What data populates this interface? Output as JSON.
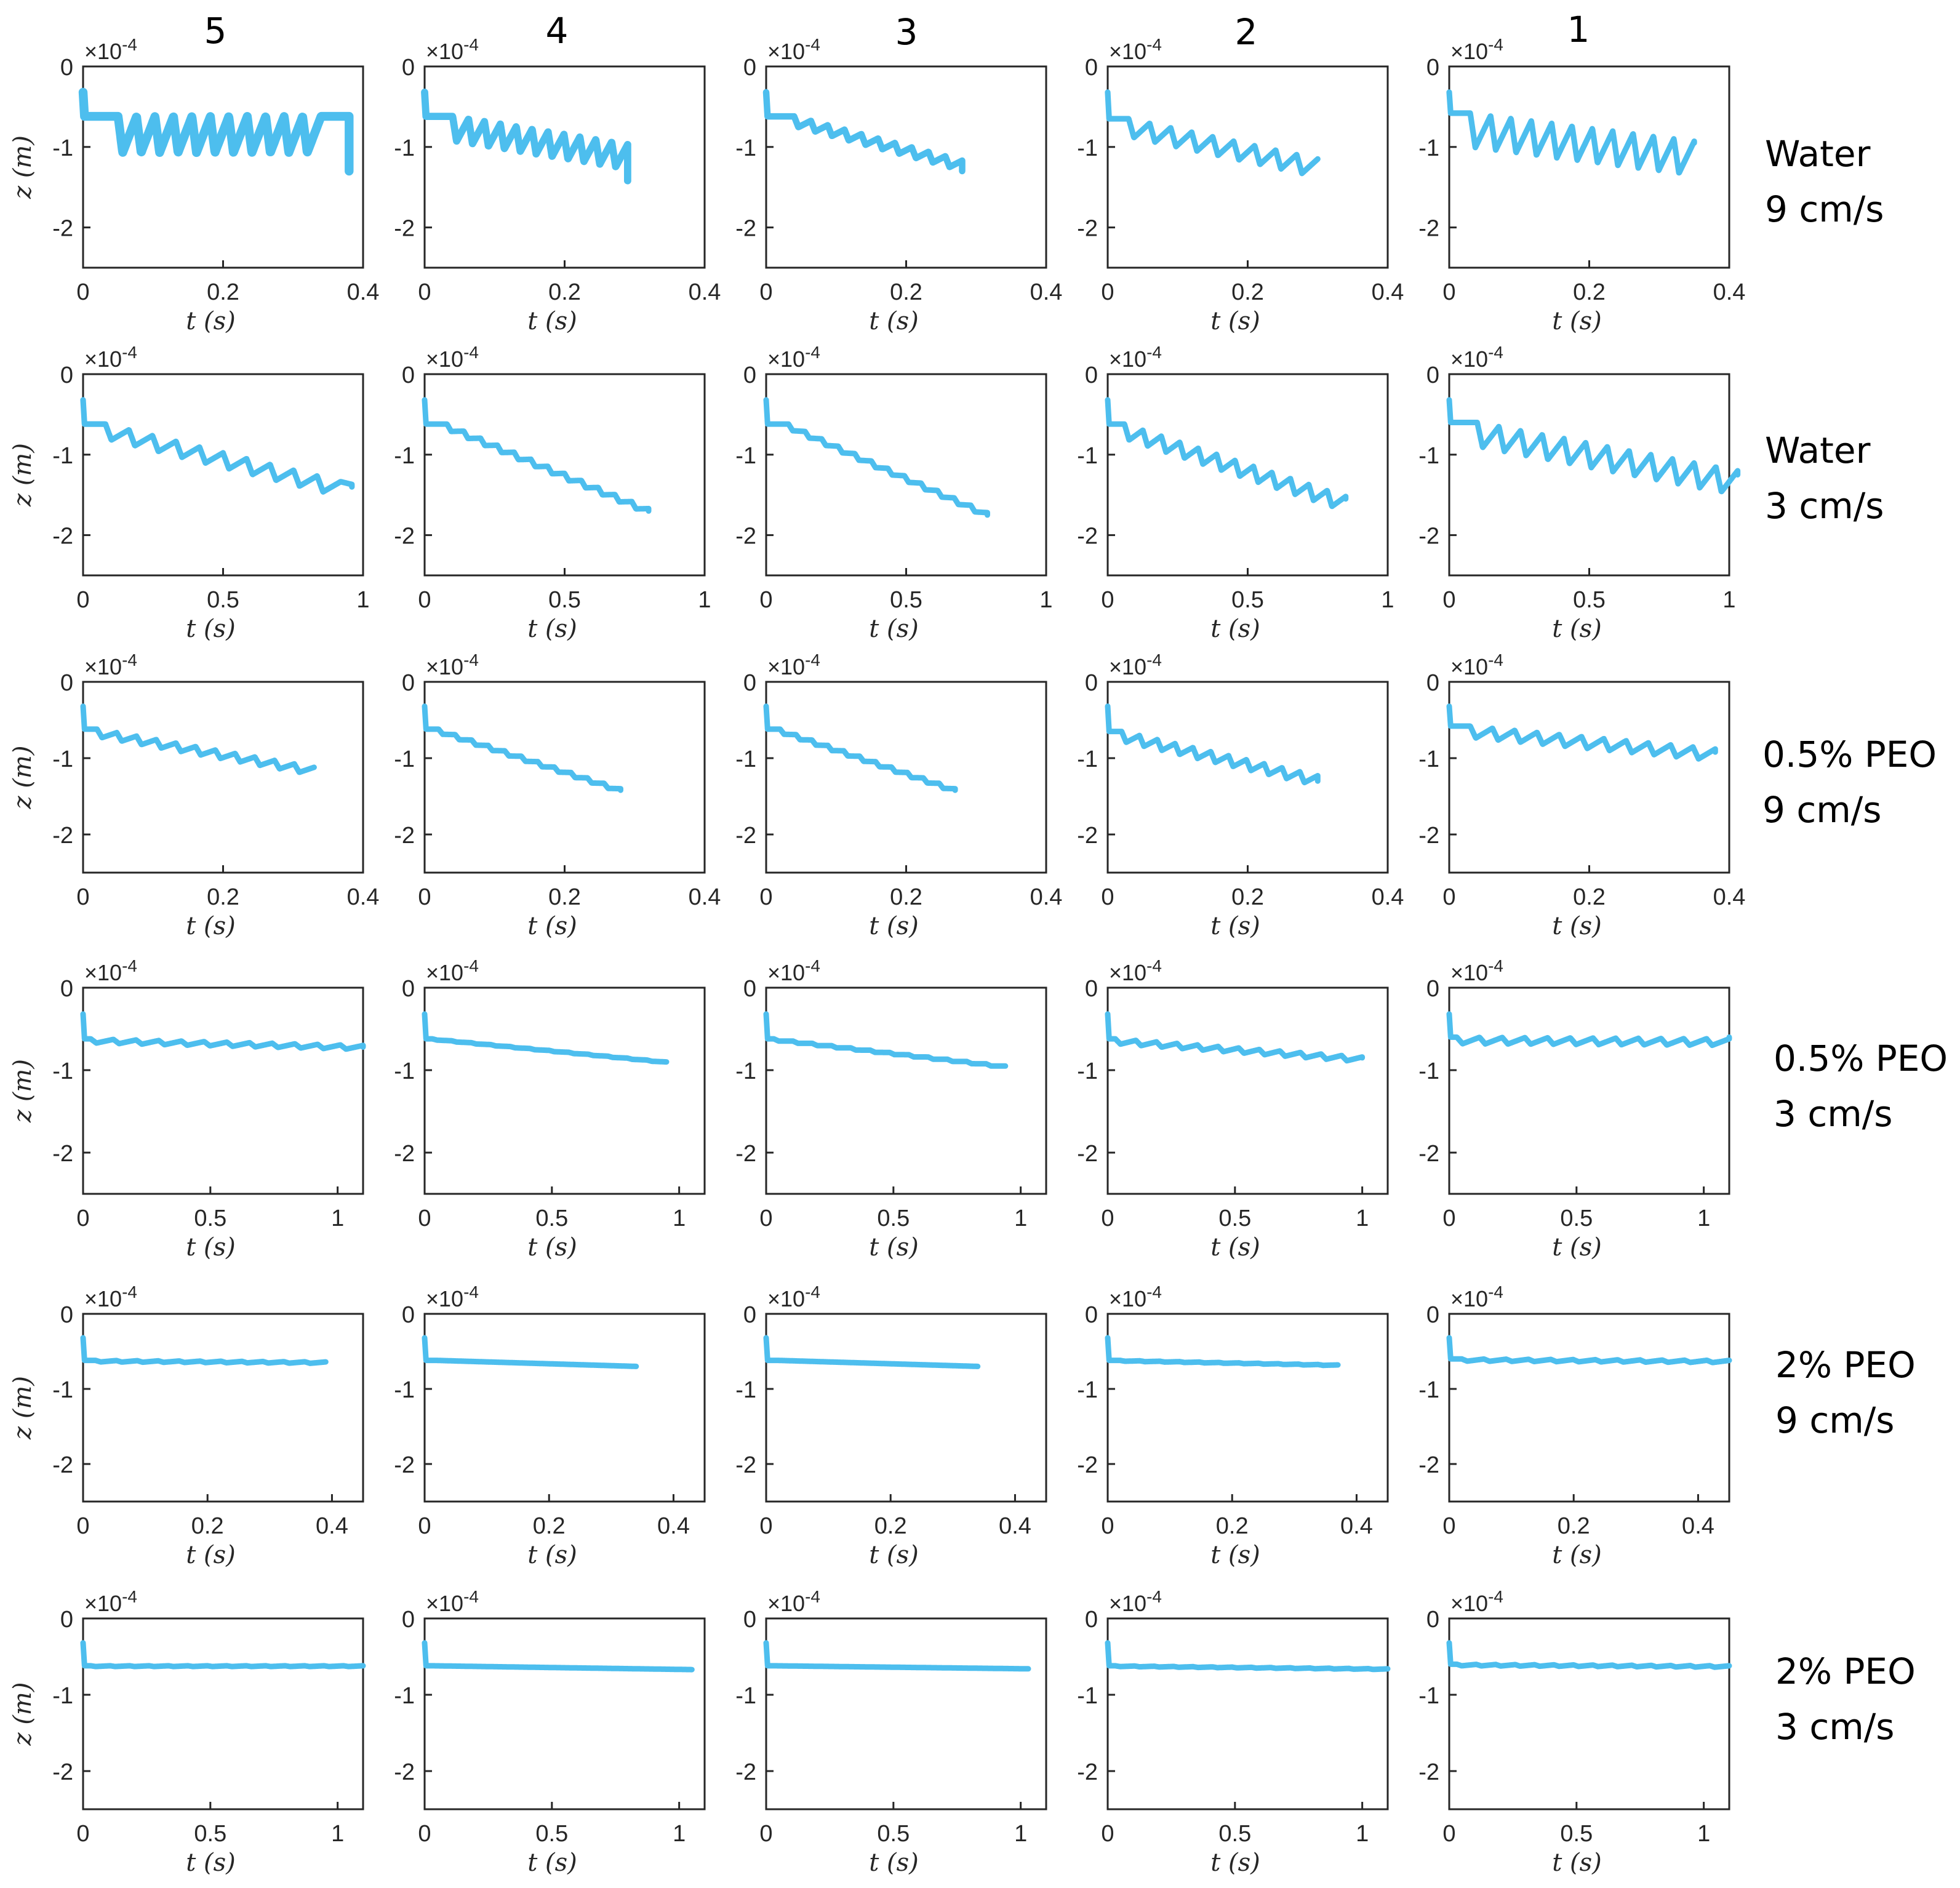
{
  "figure": {
    "column_headers": [
      "5",
      "4",
      "3",
      "2",
      "1"
    ],
    "row_labels": [
      {
        "line1": "Water",
        "line2": "9 cm/s"
      },
      {
        "line1": "Water",
        "line2": "3 cm/s"
      },
      {
        "line1": "0.5% PEO",
        "line2": "9 cm/s"
      },
      {
        "line1": "0.5% PEO",
        "line2": "3 cm/s"
      },
      {
        "line1": "2% PEO",
        "line2": "9 cm/s"
      },
      {
        "line1": "2% PEO",
        "line2": "3 cm/s"
      }
    ],
    "xlabel": "t (s)",
    "ylabel": "z (m)",
    "exponent_label": "×10",
    "exponent_power": "-4",
    "line_color": "#4DBEEE",
    "axis_color": "#262626"
  },
  "chart_data": [
    {
      "type": "line",
      "row": "Water 9 cm/s",
      "column": "5",
      "xlim": [
        0,
        0.4
      ],
      "xticks": [
        "0",
        "0.2",
        "0.4"
      ],
      "ylim": [
        -2.5,
        0
      ],
      "yticks": [
        "0",
        "-1",
        "-2"
      ],
      "t_end": 0.38,
      "osc_cycles": 11,
      "osc_amplitude": 0.45,
      "osc_start": 0.05,
      "osc_end": 0.34,
      "plateau": -0.62,
      "drift": 0.0,
      "end_value": -1.3,
      "trace_width": 0.11
    },
    {
      "type": "line",
      "row": "Water 9 cm/s",
      "column": "4",
      "xlim": [
        0,
        0.4
      ],
      "xticks": [
        "0",
        "0.2",
        "0.4"
      ],
      "ylim": [
        -2.5,
        0
      ],
      "yticks": [
        "0",
        "-1",
        "-2"
      ],
      "t_end": 0.29,
      "osc_cycles": 11,
      "osc_amplitude": 0.3,
      "osc_start": 0.04,
      "osc_end": 0.29,
      "plateau": -0.62,
      "drift": -0.35,
      "end_value": -1.42,
      "trace_width": 0.09
    },
    {
      "type": "line",
      "row": "Water 9 cm/s",
      "column": "3",
      "xlim": [
        0,
        0.4
      ],
      "xticks": [
        "0",
        "0.2",
        "0.4"
      ],
      "ylim": [
        -2.5,
        0
      ],
      "yticks": [
        "0",
        "-1",
        "-2"
      ],
      "t_end": 0.28,
      "osc_cycles": 10,
      "osc_amplitude": 0.12,
      "osc_start": 0.04,
      "osc_end": 0.28,
      "plateau": -0.62,
      "drift": -0.55,
      "end_value": -1.3,
      "trace_width": 0.08
    },
    {
      "type": "line",
      "row": "Water 9 cm/s",
      "column": "2",
      "xlim": [
        0,
        0.4
      ],
      "xticks": [
        "0",
        "0.2",
        "0.4"
      ],
      "ylim": [
        -2.5,
        0
      ],
      "yticks": [
        "0",
        "-1",
        "-2"
      ],
      "t_end": 0.3,
      "osc_cycles": 9,
      "osc_amplitude": 0.22,
      "osc_start": 0.03,
      "osc_end": 0.3,
      "plateau": -0.65,
      "drift": -0.5,
      "end_value": -1.15,
      "trace_width": 0.07
    },
    {
      "type": "line",
      "row": "Water 9 cm/s",
      "column": "1",
      "xlim": [
        0,
        0.4
      ],
      "xticks": [
        "0",
        "0.2",
        "0.4"
      ],
      "ylim": [
        -2.5,
        0
      ],
      "yticks": [
        "0",
        "-1",
        "-2"
      ],
      "t_end": 0.35,
      "osc_cycles": 11,
      "osc_amplitude": 0.42,
      "osc_start": 0.03,
      "osc_end": 0.35,
      "plateau": -0.58,
      "drift": -0.35,
      "end_value": -0.95,
      "trace_width": 0.07
    },
    {
      "type": "line",
      "row": "Water 3 cm/s",
      "column": "5",
      "xlim": [
        0,
        1
      ],
      "xticks": [
        "0",
        "0.5",
        "1"
      ],
      "ylim": [
        -2.5,
        0
      ],
      "yticks": [
        "0",
        "-1",
        "-2"
      ],
      "t_end": 0.96,
      "osc_cycles": 10,
      "osc_amplitude": 0.18,
      "osc_start": 0.08,
      "osc_end": 0.92,
      "plateau": -0.62,
      "drift": -0.75,
      "end_value": -1.4,
      "trace_width": 0.07
    },
    {
      "type": "line",
      "row": "Water 3 cm/s",
      "column": "4",
      "xlim": [
        0,
        1
      ],
      "xticks": [
        "0",
        "0.5",
        "1"
      ],
      "ylim": [
        -2.5,
        0
      ],
      "yticks": [
        "0",
        "-1",
        "-2"
      ],
      "t_end": 0.8,
      "osc_cycles": 12,
      "osc_amplitude": 0.07,
      "osc_start": 0.08,
      "osc_end": 0.8,
      "plateau": -0.62,
      "drift": -1.05,
      "end_value": -1.7,
      "trace_width": 0.06
    },
    {
      "type": "line",
      "row": "Water 3 cm/s",
      "column": "3",
      "xlim": [
        0,
        1
      ],
      "xticks": [
        "0",
        "0.5",
        "1"
      ],
      "ylim": [
        -2.5,
        0
      ],
      "yticks": [
        "0",
        "-1",
        "-2"
      ],
      "t_end": 0.79,
      "osc_cycles": 12,
      "osc_amplitude": 0.06,
      "osc_start": 0.08,
      "osc_end": 0.79,
      "plateau": -0.62,
      "drift": -1.1,
      "end_value": -1.75,
      "trace_width": 0.06
    },
    {
      "type": "line",
      "row": "Water 3 cm/s",
      "column": "2",
      "xlim": [
        0,
        1
      ],
      "xticks": [
        "0",
        "0.5",
        "1"
      ],
      "ylim": [
        -2.5,
        0
      ],
      "yticks": [
        "0",
        "-1",
        "-2"
      ],
      "t_end": 0.85,
      "osc_cycles": 12,
      "osc_amplitude": 0.18,
      "osc_start": 0.06,
      "osc_end": 0.85,
      "plateau": -0.62,
      "drift": -0.9,
      "end_value": -1.55,
      "trace_width": 0.06
    },
    {
      "type": "line",
      "row": "Water 3 cm/s",
      "column": "1",
      "xlim": [
        0,
        1
      ],
      "xticks": [
        "0",
        "0.5",
        "1"
      ],
      "ylim": [
        -2.5,
        0
      ],
      "yticks": [
        "0",
        "-1",
        "-2"
      ],
      "t_end": 1.03,
      "osc_cycles": 12,
      "osc_amplitude": 0.3,
      "osc_start": 0.1,
      "osc_end": 1.03,
      "plateau": -0.6,
      "drift": -0.6,
      "end_value": -1.25,
      "trace_width": 0.06
    },
    {
      "type": "line",
      "row": "0.5% PEO 9 cm/s",
      "column": "5",
      "xlim": [
        0,
        0.4
      ],
      "xticks": [
        "0",
        "0.2",
        "0.4"
      ],
      "ylim": [
        -2.5,
        0
      ],
      "yticks": [
        "0",
        "-1",
        "-2"
      ],
      "t_end": 0.33,
      "osc_cycles": 11,
      "osc_amplitude": 0.1,
      "osc_start": 0.02,
      "osc_end": 0.33,
      "plateau": -0.62,
      "drift": -0.5,
      "end_value": -1.12,
      "trace_width": 0.06
    },
    {
      "type": "line",
      "row": "0.5% PEO 9 cm/s",
      "column": "4",
      "xlim": [
        0,
        0.4
      ],
      "xticks": [
        "0",
        "0.2",
        "0.4"
      ],
      "ylim": [
        -2.5,
        0
      ],
      "yticks": [
        "0",
        "-1",
        "-2"
      ],
      "t_end": 0.28,
      "osc_cycles": 11,
      "osc_amplitude": 0.05,
      "osc_start": 0.02,
      "osc_end": 0.28,
      "plateau": -0.62,
      "drift": -0.78,
      "end_value": -1.42,
      "trace_width": 0.06
    },
    {
      "type": "line",
      "row": "0.5% PEO 9 cm/s",
      "column": "3",
      "xlim": [
        0,
        0.4
      ],
      "xticks": [
        "0",
        "0.2",
        "0.4"
      ],
      "ylim": [
        -2.5,
        0
      ],
      "yticks": [
        "0",
        "-1",
        "-2"
      ],
      "t_end": 0.27,
      "osc_cycles": 11,
      "osc_amplitude": 0.05,
      "osc_start": 0.02,
      "osc_end": 0.27,
      "plateau": -0.62,
      "drift": -0.78,
      "end_value": -1.42,
      "trace_width": 0.06
    },
    {
      "type": "line",
      "row": "0.5% PEO 9 cm/s",
      "column": "2",
      "xlim": [
        0,
        0.4
      ],
      "xticks": [
        "0",
        "0.2",
        "0.4"
      ],
      "ylim": [
        -2.5,
        0
      ],
      "yticks": [
        "0",
        "-1",
        "-2"
      ],
      "t_end": 0.3,
      "osc_cycles": 11,
      "osc_amplitude": 0.13,
      "osc_start": 0.02,
      "osc_end": 0.3,
      "plateau": -0.65,
      "drift": -0.58,
      "end_value": -1.3,
      "trace_width": 0.06
    },
    {
      "type": "line",
      "row": "0.5% PEO 9 cm/s",
      "column": "1",
      "xlim": [
        0,
        0.4
      ],
      "xticks": [
        "0",
        "0.2",
        "0.4"
      ],
      "ylim": [
        -2.5,
        0
      ],
      "yticks": [
        "0",
        "-1",
        "-2"
      ],
      "t_end": 0.38,
      "osc_cycles": 11,
      "osc_amplitude": 0.15,
      "osc_start": 0.03,
      "osc_end": 0.38,
      "plateau": -0.58,
      "drift": -0.3,
      "end_value": -0.92,
      "trace_width": 0.06
    },
    {
      "type": "line",
      "row": "0.5% PEO 3 cm/s",
      "column": "5",
      "xlim": [
        0,
        1.1
      ],
      "xticks": [
        "0",
        "0.5",
        "1"
      ],
      "ylim": [
        -2.5,
        0
      ],
      "yticks": [
        "0",
        "-1",
        "-2"
      ],
      "t_end": 1.1,
      "osc_cycles": 12,
      "osc_amplitude": 0.05,
      "osc_start": 0.03,
      "osc_end": 1.1,
      "plateau": -0.62,
      "drift": -0.08,
      "end_value": -0.72,
      "trace_width": 0.05
    },
    {
      "type": "line",
      "row": "0.5% PEO 3 cm/s",
      "column": "4",
      "xlim": [
        0,
        1.1
      ],
      "xticks": [
        "0",
        "0.5",
        "1"
      ],
      "ylim": [
        -2.5,
        0
      ],
      "yticks": [
        "0",
        "-1",
        "-2"
      ],
      "t_end": 0.95,
      "osc_cycles": 12,
      "osc_amplitude": 0.01,
      "osc_start": 0.03,
      "osc_end": 0.95,
      "plateau": -0.62,
      "drift": -0.28,
      "end_value": -0.9,
      "trace_width": 0.05
    },
    {
      "type": "line",
      "row": "0.5% PEO 3 cm/s",
      "column": "3",
      "xlim": [
        0,
        1.1
      ],
      "xticks": [
        "0",
        "0.5",
        "1"
      ],
      "ylim": [
        -2.5,
        0
      ],
      "yticks": [
        "0",
        "-1",
        "-2"
      ],
      "t_end": 0.94,
      "osc_cycles": 12,
      "osc_amplitude": 0.02,
      "osc_start": 0.03,
      "osc_end": 0.94,
      "plateau": -0.62,
      "drift": -0.33,
      "end_value": -0.95,
      "trace_width": 0.05
    },
    {
      "type": "line",
      "row": "0.5% PEO 3 cm/s",
      "column": "2",
      "xlim": [
        0,
        1.1
      ],
      "xticks": [
        "0",
        "0.5",
        "1"
      ],
      "ylim": [
        -2.5,
        0
      ],
      "yticks": [
        "0",
        "-1",
        "-2"
      ],
      "t_end": 1.0,
      "osc_cycles": 12,
      "osc_amplitude": 0.06,
      "osc_start": 0.03,
      "osc_end": 1.0,
      "plateau": -0.62,
      "drift": -0.22,
      "end_value": -0.85,
      "trace_width": 0.05
    },
    {
      "type": "line",
      "row": "0.5% PEO 3 cm/s",
      "column": "1",
      "xlim": [
        0,
        1.1
      ],
      "xticks": [
        "0",
        "0.5",
        "1"
      ],
      "ylim": [
        -2.5,
        0
      ],
      "yticks": [
        "0",
        "-1",
        "-2"
      ],
      "t_end": 1.1,
      "osc_cycles": 12,
      "osc_amplitude": 0.08,
      "osc_start": 0.03,
      "osc_end": 1.1,
      "plateau": -0.6,
      "drift": -0.02,
      "end_value": -0.6,
      "trace_width": 0.05
    },
    {
      "type": "line",
      "row": "2% PEO 9 cm/s",
      "column": "5",
      "xlim": [
        0,
        0.45
      ],
      "xticks": [
        "0",
        "0.2",
        "0.4"
      ],
      "ylim": [
        -2.5,
        0
      ],
      "yticks": [
        "0",
        "-1",
        "-2"
      ],
      "t_end": 0.39,
      "osc_cycles": 11,
      "osc_amplitude": 0.02,
      "osc_start": 0.02,
      "osc_end": 0.39,
      "plateau": -0.62,
      "drift": -0.02,
      "end_value": -0.64,
      "trace_width": 0.04
    },
    {
      "type": "line",
      "row": "2% PEO 9 cm/s",
      "column": "4",
      "xlim": [
        0,
        0.45
      ],
      "xticks": [
        "0",
        "0.2",
        "0.4"
      ],
      "ylim": [
        -2.5,
        0
      ],
      "yticks": [
        "0",
        "-1",
        "-2"
      ],
      "t_end": 0.34,
      "osc_cycles": 11,
      "osc_amplitude": 0.0,
      "osc_start": 0.02,
      "osc_end": 0.34,
      "plateau": -0.62,
      "drift": -0.08,
      "end_value": -0.7,
      "trace_width": 0.04
    },
    {
      "type": "line",
      "row": "2% PEO 9 cm/s",
      "column": "3",
      "xlim": [
        0,
        0.45
      ],
      "xticks": [
        "0",
        "0.2",
        "0.4"
      ],
      "ylim": [
        -2.5,
        0
      ],
      "yticks": [
        "0",
        "-1",
        "-2"
      ],
      "t_end": 0.34,
      "osc_cycles": 11,
      "osc_amplitude": 0.0,
      "osc_start": 0.02,
      "osc_end": 0.34,
      "plateau": -0.62,
      "drift": -0.08,
      "end_value": -0.7,
      "trace_width": 0.04
    },
    {
      "type": "line",
      "row": "2% PEO 9 cm/s",
      "column": "2",
      "xlim": [
        0,
        0.45
      ],
      "xticks": [
        "0",
        "0.2",
        "0.4"
      ],
      "ylim": [
        -2.5,
        0
      ],
      "yticks": [
        "0",
        "-1",
        "-2"
      ],
      "t_end": 0.37,
      "osc_cycles": 11,
      "osc_amplitude": 0.01,
      "osc_start": 0.02,
      "osc_end": 0.37,
      "plateau": -0.62,
      "drift": -0.06,
      "end_value": -0.68,
      "trace_width": 0.04
    },
    {
      "type": "line",
      "row": "2% PEO 9 cm/s",
      "column": "1",
      "xlim": [
        0,
        0.45
      ],
      "xticks": [
        "0",
        "0.2",
        "0.4"
      ],
      "ylim": [
        -2.5,
        0
      ],
      "yticks": [
        "0",
        "-1",
        "-2"
      ],
      "t_end": 0.45,
      "osc_cycles": 12,
      "osc_amplitude": 0.03,
      "osc_start": 0.02,
      "osc_end": 0.45,
      "plateau": -0.6,
      "drift": -0.02,
      "end_value": -0.62,
      "trace_width": 0.04
    },
    {
      "type": "line",
      "row": "2% PEO 3 cm/s",
      "column": "5",
      "xlim": [
        0,
        1.1
      ],
      "xticks": [
        "0",
        "0.5",
        "1"
      ],
      "ylim": [
        -2.5,
        0
      ],
      "yticks": [
        "0",
        "-1",
        "-2"
      ],
      "t_end": 1.1,
      "osc_cycles": 14,
      "osc_amplitude": 0.01,
      "osc_start": 0.03,
      "osc_end": 1.1,
      "plateau": -0.62,
      "drift": 0.0,
      "end_value": -0.62,
      "trace_width": 0.04
    },
    {
      "type": "line",
      "row": "2% PEO 3 cm/s",
      "column": "4",
      "xlim": [
        0,
        1.1
      ],
      "xticks": [
        "0",
        "0.5",
        "1"
      ],
      "ylim": [
        -2.5,
        0
      ],
      "yticks": [
        "0",
        "-1",
        "-2"
      ],
      "t_end": 1.05,
      "osc_cycles": 14,
      "osc_amplitude": 0.0,
      "osc_start": 0.03,
      "osc_end": 1.05,
      "plateau": -0.62,
      "drift": -0.05,
      "end_value": -0.67,
      "trace_width": 0.04
    },
    {
      "type": "line",
      "row": "2% PEO 3 cm/s",
      "column": "3",
      "xlim": [
        0,
        1.1
      ],
      "xticks": [
        "0",
        "0.5",
        "1"
      ],
      "ylim": [
        -2.5,
        0
      ],
      "yticks": [
        "0",
        "-1",
        "-2"
      ],
      "t_end": 1.03,
      "osc_cycles": 14,
      "osc_amplitude": 0.0,
      "osc_start": 0.03,
      "osc_end": 1.03,
      "plateau": -0.62,
      "drift": -0.04,
      "end_value": -0.66,
      "trace_width": 0.04
    },
    {
      "type": "line",
      "row": "2% PEO 3 cm/s",
      "column": "2",
      "xlim": [
        0,
        1.1
      ],
      "xticks": [
        "0",
        "0.5",
        "1"
      ],
      "ylim": [
        -2.5,
        0
      ],
      "yticks": [
        "0",
        "-1",
        "-2"
      ],
      "t_end": 1.1,
      "osc_cycles": 14,
      "osc_amplitude": 0.01,
      "osc_start": 0.03,
      "osc_end": 1.1,
      "plateau": -0.62,
      "drift": -0.04,
      "end_value": -0.66,
      "trace_width": 0.04
    },
    {
      "type": "line",
      "row": "2% PEO 3 cm/s",
      "column": "1",
      "xlim": [
        0,
        1.1
      ],
      "xticks": [
        "0",
        "0.5",
        "1"
      ],
      "ylim": [
        -2.5,
        0
      ],
      "yticks": [
        "0",
        "-1",
        "-2"
      ],
      "t_end": 1.1,
      "osc_cycles": 14,
      "osc_amplitude": 0.02,
      "osc_start": 0.03,
      "osc_end": 1.1,
      "plateau": -0.6,
      "drift": -0.02,
      "end_value": -0.62,
      "trace_width": 0.04
    }
  ]
}
